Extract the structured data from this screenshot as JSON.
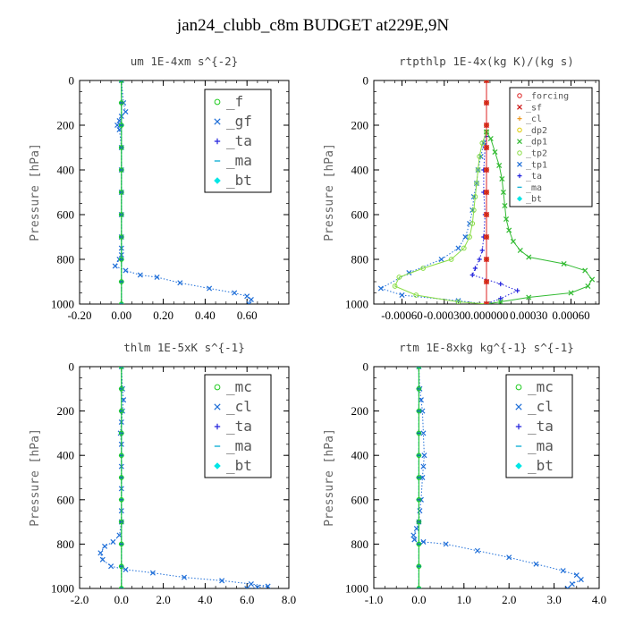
{
  "figure": {
    "title": "jan24_clubb_c8m  BUDGET at229E,9N"
  },
  "chart_data": [
    {
      "type": "line",
      "title": "um   1E-4xm s^{-2}",
      "ylabel": "Pressure [hPa]",
      "xlim": [
        -0.2,
        0.8
      ],
      "ylim": [
        1000,
        0
      ],
      "xticks": [
        "-0.20",
        "0.00",
        "0.20",
        "0.40",
        "0.60"
      ],
      "yticks": [
        "0",
        "200",
        "400",
        "600",
        "800",
        "1000"
      ],
      "legend": {
        "position": "top-right",
        "size": "large"
      },
      "series": [
        {
          "name": "_f",
          "color": "#22cc22",
          "marker": "circle",
          "style": "solid",
          "x": [
            0.0,
            0.0,
            0.0,
            0.0,
            0.0,
            0.0,
            0.0,
            0.0,
            0.0,
            0.0,
            0.0
          ],
          "y": [
            0,
            100,
            200,
            300,
            400,
            500,
            600,
            700,
            800,
            900,
            1000
          ]
        },
        {
          "name": "_gf",
          "color": "#1e6ed8",
          "marker": "x",
          "style": "dotted",
          "x": [
            0.0,
            0.01,
            0.02,
            0.0,
            -0.01,
            -0.02,
            -0.01,
            0.0,
            0.0,
            0.0,
            0.0,
            0.0,
            0.0,
            0.0,
            -0.01,
            -0.03,
            0.02,
            0.09,
            0.17,
            0.28,
            0.42,
            0.54,
            0.6,
            0.62,
            0.61
          ],
          "y": [
            0,
            100,
            140,
            160,
            180,
            200,
            220,
            300,
            400,
            500,
            600,
            700,
            750,
            780,
            800,
            830,
            850,
            870,
            880,
            905,
            930,
            950,
            965,
            980,
            1000
          ]
        },
        {
          "name": "_ta",
          "color": "#2222dd",
          "marker": "plus",
          "style": "dotted",
          "x": [
            0.0,
            0.0,
            0.0,
            0.0,
            0.0,
            0.0,
            0.0,
            0.0,
            0.0,
            0.0,
            0.0
          ],
          "y": [
            0,
            100,
            200,
            300,
            400,
            500,
            600,
            700,
            800,
            900,
            1000
          ]
        },
        {
          "name": "_ma",
          "color": "#17b2d6",
          "marker": "dash",
          "style": "dashed",
          "x": [
            0.0,
            0.0,
            0.0,
            0.0,
            0.0,
            0.0,
            0.0,
            0.0,
            0.0,
            0.0,
            0.0
          ],
          "y": [
            0,
            100,
            200,
            300,
            400,
            500,
            600,
            700,
            800,
            900,
            1000
          ]
        },
        {
          "name": "_bt",
          "color": "#00e6e6",
          "marker": "diamond",
          "style": "solid",
          "x": [
            0.0,
            0.0,
            0.0,
            0.0,
            0.0,
            0.0,
            0.0,
            0.0,
            0.0,
            0.0,
            0.0
          ],
          "y": [
            0,
            100,
            200,
            300,
            400,
            500,
            600,
            700,
            800,
            900,
            1000
          ]
        }
      ]
    },
    {
      "type": "line",
      "title": "rtpthlp   1E-4x(kg K)/(kg s)",
      "ylabel": "Pressure [hPa]",
      "xlim": [
        -0.0008,
        0.0008
      ],
      "ylim": [
        1000,
        0
      ],
      "xticks": [
        "-0.00060",
        "-0.00030",
        "0.000000",
        "0.00030",
        "0.00060"
      ],
      "yticks": [
        "0",
        "200",
        "400",
        "600",
        "800",
        "1000"
      ],
      "legend": {
        "position": "top-right",
        "size": "small"
      },
      "series": [
        {
          "name": "_forcing",
          "color": "#dd2222",
          "marker": "circle",
          "style": "solid",
          "x": [
            0,
            0,
            0,
            0,
            0,
            0,
            0,
            0,
            0,
            0,
            0
          ],
          "y": [
            0,
            100,
            200,
            300,
            400,
            500,
            600,
            700,
            800,
            900,
            1000
          ]
        },
        {
          "name": "_sf",
          "color": "#cc1111",
          "marker": "x",
          "style": "solid",
          "x": [
            0,
            0,
            0,
            0,
            0,
            0,
            0,
            0,
            0,
            0,
            0
          ],
          "y": [
            0,
            100,
            200,
            300,
            400,
            500,
            600,
            700,
            800,
            900,
            1000
          ]
        },
        {
          "name": "_cl",
          "color": "#ee9922",
          "marker": "plus",
          "style": "solid",
          "x": [
            0,
            0,
            0,
            0,
            0,
            0,
            0,
            0,
            0,
            0,
            0
          ],
          "y": [
            0,
            100,
            200,
            300,
            400,
            500,
            600,
            700,
            800,
            900,
            1000
          ]
        },
        {
          "name": "_dp2",
          "color": "#ddcc00",
          "marker": "circle",
          "style": "solid",
          "x": [
            0,
            0,
            0,
            0,
            0,
            0,
            0,
            0,
            0,
            0,
            0
          ],
          "y": [
            0,
            100,
            200,
            300,
            400,
            500,
            600,
            700,
            800,
            900,
            1000
          ]
        },
        {
          "name": "_dp1",
          "color": "#33bb33",
          "marker": "x",
          "style": "solid",
          "x": [
            0,
            0,
            3e-05,
            6e-05,
            9e-05,
            0.00011,
            0.00012,
            0.00013,
            0.00014,
            0.00016,
            0.00019,
            0.00024,
            0.0003,
            0.00055,
            0.0007,
            0.00075,
            0.00072,
            0.0006,
            0.0003,
            0.0001,
            0
          ],
          "y": [
            0,
            230,
            260,
            320,
            380,
            440,
            500,
            560,
            620,
            670,
            720,
            760,
            790,
            820,
            850,
            890,
            920,
            950,
            970,
            990,
            1000
          ]
        },
        {
          "name": "_tp2",
          "color": "#88dd44",
          "marker": "circle",
          "style": "solid",
          "x": [
            0,
            0,
            -3e-05,
            -5e-05,
            -6e-05,
            -7e-05,
            -8e-05,
            -9e-05,
            -0.0001,
            -0.00012,
            -0.00016,
            -0.00025,
            -0.00045,
            -0.00062,
            -0.00065,
            -0.0005,
            -0.0002,
            0
          ],
          "y": [
            0,
            230,
            280,
            340,
            400,
            460,
            520,
            580,
            640,
            700,
            750,
            800,
            840,
            880,
            920,
            960,
            990,
            1000
          ]
        },
        {
          "name": "_tp1",
          "color": "#1e6ed8",
          "marker": "x",
          "style": "dotted",
          "x": [
            0,
            0,
            -2e-05,
            -4e-05,
            -6e-05,
            -7e-05,
            -9e-05,
            -0.0001,
            -0.00012,
            -0.00015,
            -0.0002,
            -0.00032,
            -0.00055,
            -0.00075,
            -0.0006,
            -0.0002,
            0
          ],
          "y": [
            0,
            230,
            280,
            340,
            400,
            460,
            520,
            580,
            640,
            700,
            750,
            800,
            860,
            930,
            960,
            985,
            1000
          ]
        },
        {
          "name": "_ta",
          "color": "#2222dd",
          "marker": "plus",
          "style": "dotted",
          "x": [
            0,
            0,
            -1e-05,
            -2e-05,
            -2e-05,
            -1e-05,
            -2e-05,
            -3e-05,
            -5e-05,
            -8e-05,
            -0.0001,
            0.0001,
            0.00022,
            0.0001,
            0
          ],
          "y": [
            0,
            250,
            300,
            400,
            500,
            600,
            700,
            760,
            800,
            840,
            870,
            910,
            940,
            975,
            1000
          ]
        },
        {
          "name": "_ma",
          "color": "#17b2d6",
          "marker": "dash",
          "style": "dashed",
          "x": [
            0,
            0,
            0,
            0,
            0,
            0,
            0,
            0,
            0,
            0,
            0
          ],
          "y": [
            0,
            100,
            200,
            300,
            400,
            500,
            600,
            700,
            800,
            900,
            1000
          ]
        },
        {
          "name": "_bt",
          "color": "#00e6e6",
          "marker": "diamond",
          "style": "solid",
          "x": [
            0,
            0,
            0,
            0,
            0,
            0,
            0,
            0,
            0,
            0,
            0
          ],
          "y": [
            0,
            100,
            200,
            300,
            400,
            500,
            600,
            700,
            800,
            900,
            1000
          ]
        }
      ]
    },
    {
      "type": "line",
      "title": "thlm   1E-5xK s^{-1}",
      "ylabel": "Pressure [hPa]",
      "xlim": [
        -2.0,
        8.0
      ],
      "ylim": [
        1000,
        0
      ],
      "xticks": [
        "-2.0",
        "0.0",
        "2.0",
        "4.0",
        "6.0",
        "8.0"
      ],
      "yticks": [
        "0",
        "200",
        "400",
        "600",
        "800",
        "1000"
      ],
      "legend": {
        "position": "top-right",
        "size": "large"
      },
      "series": [
        {
          "name": "_mc",
          "color": "#22cc22",
          "marker": "circle",
          "style": "solid",
          "x": [
            0,
            0,
            0,
            0,
            0,
            0,
            0,
            0,
            0,
            0,
            0
          ],
          "y": [
            0,
            100,
            200,
            300,
            400,
            500,
            600,
            700,
            800,
            900,
            1000
          ]
        },
        {
          "name": "_cl",
          "color": "#1e6ed8",
          "marker": "x",
          "style": "dotted",
          "x": [
            0.0,
            0.05,
            0.1,
            0.05,
            0.0,
            -0.05,
            0.0,
            0.0,
            0.0,
            0.0,
            0.0,
            -0.1,
            -0.4,
            -0.8,
            -1.0,
            -0.9,
            -0.5,
            0.2,
            1.5,
            3.0,
            4.8,
            6.2,
            7.0,
            6.5,
            6.0
          ],
          "y": [
            0,
            100,
            150,
            200,
            250,
            300,
            350,
            450,
            550,
            650,
            700,
            760,
            790,
            810,
            840,
            870,
            900,
            915,
            930,
            950,
            965,
            980,
            990,
            995,
            1000
          ]
        },
        {
          "name": "_ta",
          "color": "#2222dd",
          "marker": "plus",
          "style": "dotted",
          "x": [
            0,
            0,
            0,
            0,
            0,
            0,
            0,
            0,
            0,
            0,
            0
          ],
          "y": [
            0,
            100,
            200,
            300,
            400,
            500,
            600,
            700,
            800,
            900,
            1000
          ]
        },
        {
          "name": "_ma",
          "color": "#17b2d6",
          "marker": "dash",
          "style": "dashed",
          "x": [
            0,
            0,
            0,
            0,
            0,
            0,
            0,
            0,
            0,
            0,
            0
          ],
          "y": [
            0,
            100,
            200,
            300,
            400,
            500,
            600,
            700,
            800,
            900,
            1000
          ]
        },
        {
          "name": "_bt",
          "color": "#00e6e6",
          "marker": "diamond",
          "style": "solid",
          "x": [
            0,
            0,
            0,
            0,
            0,
            0,
            0,
            0,
            0,
            0,
            0
          ],
          "y": [
            0,
            100,
            200,
            300,
            400,
            500,
            600,
            700,
            800,
            900,
            1000
          ]
        }
      ]
    },
    {
      "type": "line",
      "title": "rtm   1E-8xkg kg^{-1} s^{-1}",
      "ylabel": "Pressure [hPa]",
      "xlim": [
        -1.0,
        4.0
      ],
      "ylim": [
        1000,
        0
      ],
      "xticks": [
        "-1.0",
        "0.0",
        "1.0",
        "2.0",
        "3.0",
        "4.0"
      ],
      "yticks": [
        "0",
        "200",
        "400",
        "600",
        "800",
        "1000"
      ],
      "legend": {
        "position": "top-right",
        "size": "large"
      },
      "series": [
        {
          "name": "_mc",
          "color": "#22cc22",
          "marker": "circle",
          "style": "solid",
          "x": [
            0,
            0,
            0,
            0,
            0,
            0,
            0,
            0,
            0,
            0,
            0
          ],
          "y": [
            0,
            100,
            200,
            300,
            400,
            500,
            600,
            700,
            800,
            900,
            1000
          ]
        },
        {
          "name": "_cl",
          "color": "#1e6ed8",
          "marker": "x",
          "style": "dotted",
          "x": [
            0.0,
            0.02,
            0.05,
            0.08,
            0.1,
            0.12,
            0.1,
            0.08,
            0.05,
            0.02,
            0.0,
            -0.05,
            -0.12,
            -0.1,
            0.1,
            0.6,
            1.3,
            2.0,
            2.6,
            3.2,
            3.5,
            3.6,
            3.4,
            3.3
          ],
          "y": [
            0,
            100,
            150,
            200,
            300,
            400,
            450,
            500,
            600,
            650,
            700,
            730,
            760,
            780,
            790,
            800,
            830,
            860,
            890,
            920,
            940,
            960,
            980,
            1000
          ]
        },
        {
          "name": "_ta",
          "color": "#2222dd",
          "marker": "plus",
          "style": "dotted",
          "x": [
            0,
            0,
            0,
            0,
            0,
            0,
            0,
            0,
            0,
            0,
            0
          ],
          "y": [
            0,
            100,
            200,
            300,
            400,
            500,
            600,
            700,
            800,
            900,
            1000
          ]
        },
        {
          "name": "_ma",
          "color": "#17b2d6",
          "marker": "dash",
          "style": "dashed",
          "x": [
            0,
            0,
            0,
            0,
            0,
            0,
            0,
            0,
            0,
            0,
            0
          ],
          "y": [
            0,
            100,
            200,
            300,
            400,
            500,
            600,
            700,
            800,
            900,
            1000
          ]
        },
        {
          "name": "_bt",
          "color": "#00e6e6",
          "marker": "diamond",
          "style": "solid",
          "x": [
            0,
            0,
            0,
            0,
            0,
            0,
            0,
            0,
            0,
            0,
            0
          ],
          "y": [
            0,
            100,
            200,
            300,
            400,
            500,
            600,
            700,
            800,
            900,
            1000
          ]
        }
      ]
    }
  ]
}
